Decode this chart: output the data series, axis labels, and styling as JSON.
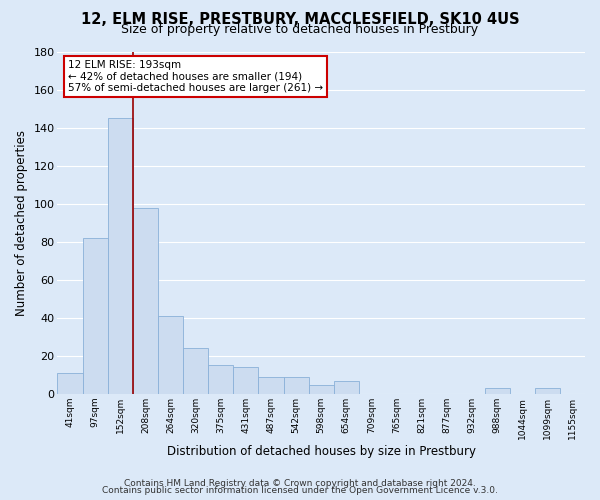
{
  "title": "12, ELM RISE, PRESTBURY, MACCLESFIELD, SK10 4US",
  "subtitle": "Size of property relative to detached houses in Prestbury",
  "xlabel": "Distribution of detached houses by size in Prestbury",
  "ylabel": "Number of detached properties",
  "bar_color": "#ccdcf0",
  "bar_edge_color": "#8ab0d8",
  "background_color": "#dce9f8",
  "plot_bg_color": "#dce9f8",
  "grid_color": "#ffffff",
  "categories": [
    "41sqm",
    "97sqm",
    "152sqm",
    "208sqm",
    "264sqm",
    "320sqm",
    "375sqm",
    "431sqm",
    "487sqm",
    "542sqm",
    "598sqm",
    "654sqm",
    "709sqm",
    "765sqm",
    "821sqm",
    "877sqm",
    "932sqm",
    "988sqm",
    "1044sqm",
    "1099sqm",
    "1155sqm"
  ],
  "values": [
    11,
    82,
    145,
    98,
    41,
    24,
    15,
    14,
    9,
    9,
    5,
    7,
    0,
    0,
    0,
    0,
    0,
    3,
    0,
    3,
    0
  ],
  "ylim": [
    0,
    180
  ],
  "yticks": [
    0,
    20,
    40,
    60,
    80,
    100,
    120,
    140,
    160,
    180
  ],
  "vline_x": 3.0,
  "vline_color": "#990000",
  "annotation_title": "12 ELM RISE: 193sqm",
  "annotation_line1": "← 42% of detached houses are smaller (194)",
  "annotation_line2": "57% of semi-detached houses are larger (261) →",
  "footer1": "Contains HM Land Registry data © Crown copyright and database right 2024.",
  "footer2": "Contains public sector information licensed under the Open Government Licence v.3.0.",
  "title_fontsize": 10.5,
  "subtitle_fontsize": 9,
  "annotation_box_edge": "#cc0000",
  "footer_fontsize": 6.5
}
